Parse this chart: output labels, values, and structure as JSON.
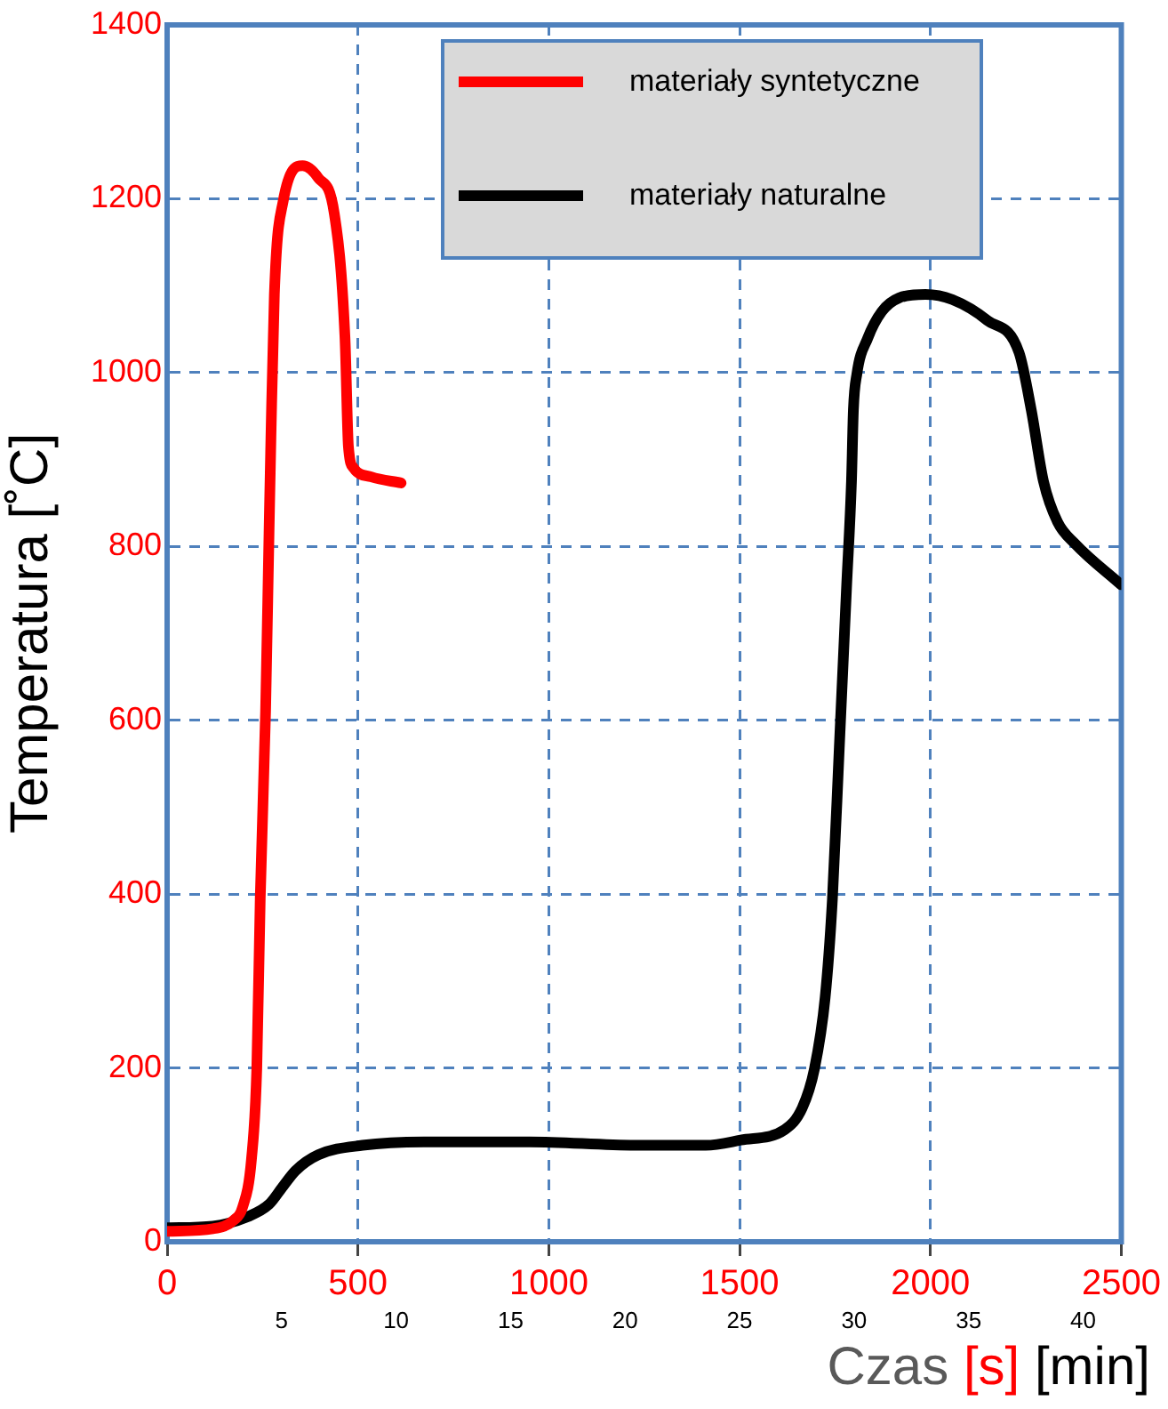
{
  "chart_data": {
    "type": "line",
    "xlabel": "Czas [s] [min]",
    "ylabel": "Temperatura [˚C]",
    "xlim": [
      0,
      2500
    ],
    "xticks": [
      0,
      500,
      1000,
      1500,
      2000,
      2500
    ],
    "x2lim": [
      0,
      41.67
    ],
    "x2ticks": [
      5,
      10,
      15,
      20,
      25,
      30,
      35,
      40
    ],
    "ylim": [
      0,
      1400
    ],
    "yticks": [
      0,
      200,
      400,
      600,
      800,
      1000,
      1200,
      1400
    ],
    "grid": true,
    "legend": "top right",
    "marker": "none",
    "line_style": "solid",
    "series": [
      {
        "name": "materiały syntetyczne",
        "color": "#ff0000",
        "x": [
          0,
          120,
          175,
          198,
          221,
          235,
          244,
          258,
          267,
          272,
          281,
          304,
          355,
          396,
          438,
          466,
          475,
          489,
          535,
          613
        ],
        "values": [
          12,
          15,
          25,
          40,
          95,
          200,
          395,
          610,
          815,
          925,
          1090,
          1197,
          1238,
          1224,
          1183,
          1040,
          915,
          890,
          880,
          873
        ]
      },
      {
        "name": "materiały naturalne",
        "color": "#000000",
        "x": [
          0,
          120,
          212,
          267,
          304,
          337,
          396,
          512,
          673,
          950,
          1226,
          1411,
          1503,
          1618,
          1664,
          1696,
          1724,
          1743,
          1761,
          1780,
          1793,
          1798,
          1807,
          1835,
          1872,
          1918,
          1987,
          2057,
          2149,
          2232,
          2264,
          2296,
          2333,
          2379,
          2499
        ],
        "values": [
          16,
          18,
          29,
          43,
          64,
          82,
          100,
          111,
          115,
          115,
          111,
          111,
          117,
          129,
          154,
          199,
          281,
          394,
          568,
          752,
          875,
          957,
          998,
          1039,
          1070,
          1086,
          1090,
          1084,
          1060,
          1023,
          957,
          875,
          828,
          803,
          756
        ]
      }
    ]
  }
}
